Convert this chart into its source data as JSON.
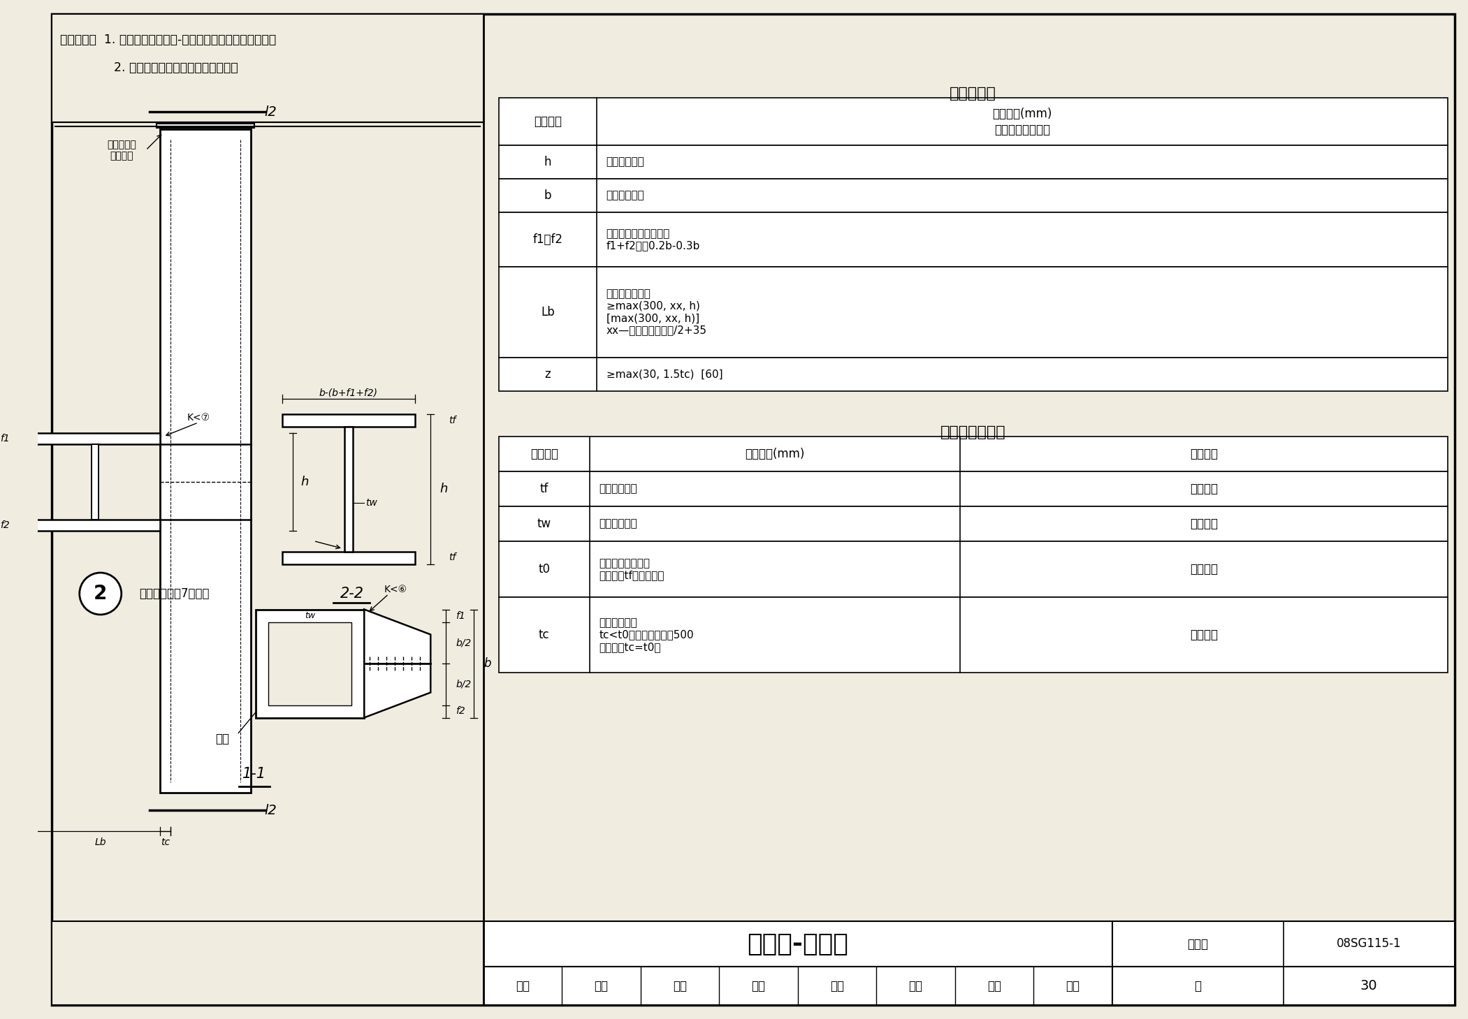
{
  "title": "箱形柱-梁节点",
  "figure_number": "08SG115-1",
  "page": "30",
  "bg": "#f0ece0",
  "white": "#ffffff",
  "scope_line1": "适用范围：  1. 多高层钢结构、钢-混凝土混合结构中的钢框架；",
  "scope_line2": "              2. 抗震设防地区及非抗震设防地区。",
  "param_table_title": "节点参数表",
  "param_col1_header": "参数名称",
  "param_col2_header1": "参数取值(mm)",
  "param_col2_header2": "限制值［参考值］",
  "param_rows": [
    [
      "h",
      "同梁截面高度"
    ],
    [
      "b",
      "同梁翼缘宽度"
    ],
    [
      "f1、f2",
      "由梁柱定位关系确定，\nf1+f2宜取0.2b-0.3b"
    ],
    [
      "Lb",
      "梁段连接长度：\n≥max(300, xx, h)\n[max(300, xx, h)]\nxx—腹板拼接板长度/2+35"
    ],
    [
      "z",
      "≥max(30, 1.5tc)  [60]"
    ]
  ],
  "thick_table_title": "节点钢板厚度表",
  "thick_col_headers": [
    "板厚符号",
    "板厚取值(mm)",
    "材质要求"
  ],
  "thick_rows": [
    [
      "tf",
      "同梁翼缘厚度",
      "与梁相同"
    ],
    [
      "tw",
      "同梁腹板厚度",
      "与梁相同"
    ],
    [
      "t0",
      "柱加劲隔板厚度：\n取各方向tf的最大值。",
      "与梁相同"
    ],
    [
      "tc",
      "柱截面壁厚：\ntc<t0时，在梁上下各500\n范围内取tc=t0。",
      "与柱相同"
    ]
  ],
  "footer_title": "箱形柱-梁节点",
  "footer_label_tuji": "图集号",
  "footer_tuji_val": "08SG115-1",
  "footer_label_ye": "页",
  "footer_ye_val": "30",
  "footer_sigs": [
    "审核",
    "申林",
    "校对",
    "刘岩",
    "刘岩",
    "设计",
    "王浩",
    "王浩"
  ],
  "note_weld": "未标注焊缝为7号焊缝",
  "label_gangjhu": "钢柱",
  "label_top": "顶层钢柱延\n伸到此处"
}
